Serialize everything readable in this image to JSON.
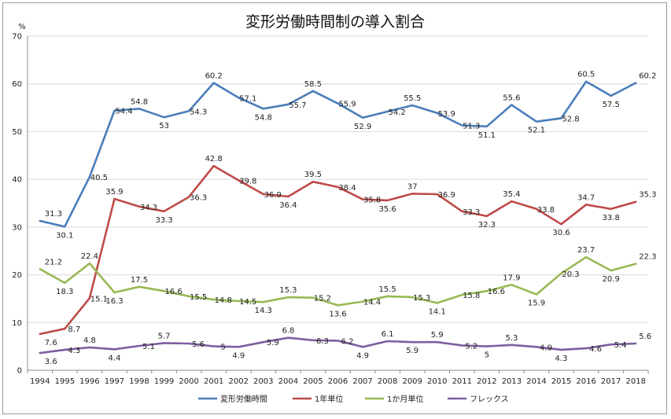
{
  "chart_data": {
    "type": "line",
    "title": "変形労働時間制の導入割合",
    "ylabel": "%",
    "xlabel": "",
    "ylim": [
      0,
      70
    ],
    "yticks": [
      0,
      10,
      20,
      30,
      40,
      50,
      60,
      70
    ],
    "grid": true,
    "legend_position": "bottom",
    "categories": [
      "1994",
      "1995",
      "1996",
      "1997",
      "1998",
      "1999",
      "2000",
      "2001",
      "2002",
      "2003",
      "2004",
      "2005",
      "2006",
      "2007",
      "2008",
      "2009",
      "2010",
      "2011",
      "2012",
      "2013",
      "2014",
      "2015",
      "2016",
      "2017",
      "2018"
    ],
    "series": [
      {
        "name": "変形労働時間",
        "color": "#4a7ebb",
        "values": [
          31.3,
          30.1,
          40.5,
          54.4,
          54.8,
          53,
          54.3,
          60.2,
          57.1,
          54.8,
          55.7,
          58.5,
          55.9,
          52.9,
          54.2,
          55.5,
          53.9,
          51.3,
          51.1,
          55.6,
          52.1,
          52.8,
          60.5,
          57.5,
          60.2
        ]
      },
      {
        "name": "1年単位",
        "color": "#be4b48",
        "values": [
          7.6,
          8.7,
          15.1,
          35.9,
          34.3,
          33.3,
          36.3,
          42.8,
          39.8,
          36.9,
          36.4,
          39.5,
          38.4,
          35.8,
          35.6,
          37,
          36.9,
          33.3,
          32.3,
          35.4,
          33.8,
          30.6,
          34.7,
          33.8,
          35.3
        ]
      },
      {
        "name": "1か月単位",
        "color": "#98b954",
        "values": [
          21.2,
          18.3,
          22.4,
          16.3,
          17.5,
          16.6,
          15.5,
          14.8,
          14.5,
          14.3,
          15.3,
          15.2,
          13.6,
          14.4,
          15.5,
          15.3,
          14.1,
          15.8,
          16.6,
          17.9,
          15.9,
          20.3,
          23.7,
          20.9,
          22.3
        ]
      },
      {
        "name": "フレックス",
        "color": "#7d5fa0",
        "values": [
          3.6,
          4.3,
          4.8,
          4.4,
          5.1,
          5.7,
          5.6,
          5,
          4.9,
          5.9,
          6.8,
          6.3,
          6.2,
          4.9,
          6.1,
          5.9,
          5.9,
          5.2,
          5,
          5.3,
          4.9,
          4.3,
          4.6,
          5.4,
          5.6
        ]
      }
    ]
  }
}
